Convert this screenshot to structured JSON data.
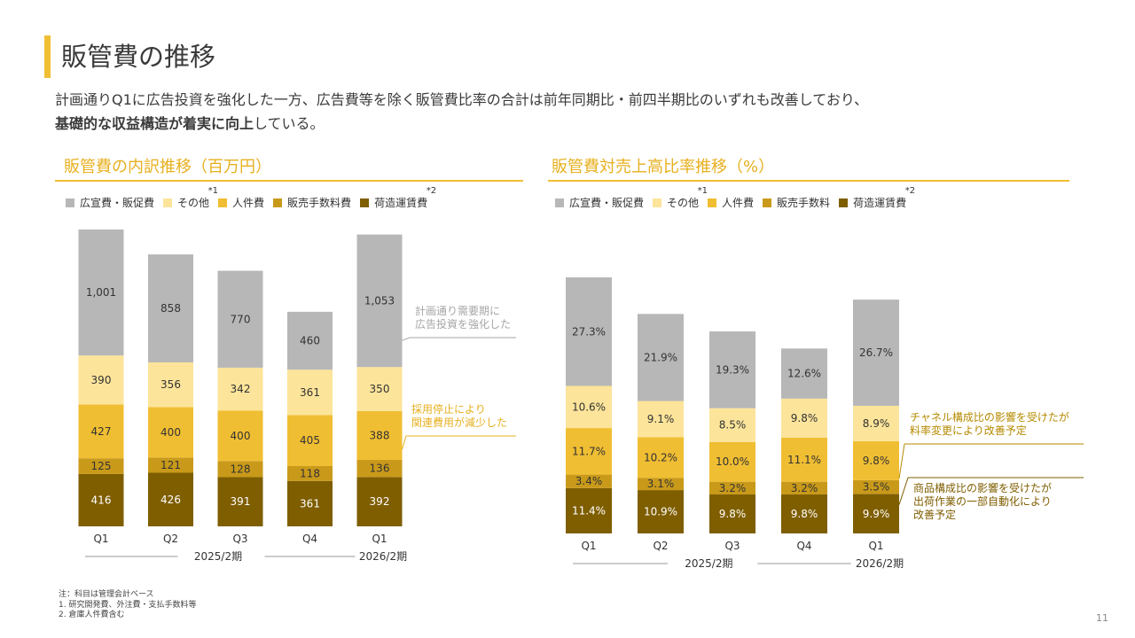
{
  "title": "販管費の推移",
  "lead": {
    "line1": "計画通りQ1に広告投資を強化した一方、広告費等を除く販管費比率の合計は前年同期比・前四半期比のいずれも改善しており、",
    "line2_bold": "基礎的な収益構造が着実に向上",
    "line2_rest": "している。"
  },
  "colors": {
    "ad": "#B7B7B7",
    "other": "#FCE49A",
    "personnel": "#F0BE32",
    "fee": "#C99A1A",
    "shipping": "#7F5E00",
    "accent": "#F0BE32"
  },
  "left_section_title": "販管費の内訳推移（百万円）",
  "right_section_title": "販管費対売上高比率推移（%）",
  "footnotes": [
    "注：科目は管理会計ベース",
    "1.  研究開発費、外注費・支払手数料等",
    "2.  倉庫人件費含む"
  ],
  "page_number": "11",
  "chart_data": [
    {
      "type": "bar",
      "stacked": true,
      "title": "販管費の内訳推移（百万円）",
      "categories": [
        "Q1",
        "Q2",
        "Q3",
        "Q4",
        "Q1"
      ],
      "period_labels": [
        "2025/2期",
        "2026/2期"
      ],
      "legend": [
        {
          "name": "広宣費・販促費",
          "key": "ad",
          "sup": ""
        },
        {
          "name": "その他",
          "key": "other",
          "sup": "1"
        },
        {
          "name": "人件費",
          "key": "personnel",
          "sup": ""
        },
        {
          "name": "販売手数料費",
          "key": "fee",
          "sup": ""
        },
        {
          "name": "荷造運賃費",
          "key": "shipping",
          "sup": "2"
        }
      ],
      "series": [
        {
          "name": "荷造運賃費",
          "key": "shipping",
          "values": [
            416,
            426,
            391,
            361,
            392
          ],
          "labels": [
            "416",
            "426",
            "391",
            "361",
            "392"
          ]
        },
        {
          "name": "販売手数料費",
          "key": "fee",
          "values": [
            125,
            121,
            128,
            118,
            136
          ],
          "labels": [
            "125",
            "121",
            "128",
            "118",
            "136"
          ]
        },
        {
          "name": "人件費",
          "key": "personnel",
          "values": [
            427,
            400,
            400,
            405,
            388
          ],
          "labels": [
            "427",
            "400",
            "400",
            "405",
            "388"
          ]
        },
        {
          "name": "その他",
          "key": "other",
          "values": [
            390,
            356,
            342,
            361,
            350
          ],
          "labels": [
            "390",
            "356",
            "342",
            "361",
            "350"
          ]
        },
        {
          "name": "広宣費・販促費",
          "key": "ad",
          "values": [
            1001,
            858,
            770,
            460,
            1053
          ],
          "labels": [
            "1,001",
            "858",
            "770",
            "460",
            "1,053"
          ]
        }
      ],
      "annotations": [
        {
          "text": [
            "計画通り需要期に",
            "広告投資を強化した"
          ],
          "series": "ad",
          "color": "#A6A6A6"
        },
        {
          "text": [
            "採用停止により",
            "関連費用が減少した"
          ],
          "series": "personnel",
          "color": "#E7B020"
        }
      ]
    },
    {
      "type": "bar",
      "stacked": true,
      "title": "販管費対売上高比率推移（%）",
      "categories": [
        "Q1",
        "Q2",
        "Q3",
        "Q4",
        "Q1"
      ],
      "period_labels": [
        "2025/2期",
        "2026/2期"
      ],
      "legend": [
        {
          "name": "広宣費・販促費",
          "key": "ad",
          "sup": ""
        },
        {
          "name": "その他",
          "key": "other",
          "sup": "1"
        },
        {
          "name": "人件費",
          "key": "personnel",
          "sup": ""
        },
        {
          "name": "販売手数料",
          "key": "fee",
          "sup": ""
        },
        {
          "name": "荷造運賃費",
          "key": "shipping",
          "sup": "2"
        }
      ],
      "series": [
        {
          "name": "荷造運賃費",
          "key": "shipping",
          "values": [
            11.4,
            10.9,
            9.8,
            9.8,
            9.9
          ],
          "labels": [
            "11.4%",
            "10.9%",
            "9.8%",
            "9.8%",
            "9.9%"
          ]
        },
        {
          "name": "販売手数料",
          "key": "fee",
          "values": [
            3.4,
            3.1,
            3.2,
            3.2,
            3.5
          ],
          "labels": [
            "3.4%",
            "3.1%",
            "3.2%",
            "3.2%",
            "3.5%"
          ]
        },
        {
          "name": "人件費",
          "key": "personnel",
          "values": [
            11.7,
            10.2,
            10.0,
            11.1,
            9.8
          ],
          "labels": [
            "11.7%",
            "10.2%",
            "10.0%",
            "11.1%",
            "9.8%"
          ]
        },
        {
          "name": "その他",
          "key": "other",
          "values": [
            10.6,
            9.1,
            8.5,
            9.8,
            8.9
          ],
          "labels": [
            "10.6%",
            "9.1%",
            "8.5%",
            "9.8%",
            "8.9%"
          ]
        },
        {
          "name": "広宣費・販促費",
          "key": "ad",
          "values": [
            27.3,
            21.9,
            19.3,
            12.6,
            26.7
          ],
          "labels": [
            "27.3%",
            "21.9%",
            "19.3%",
            "12.6%",
            "26.7%"
          ]
        }
      ],
      "annotations": [
        {
          "text": [
            "チャネル構成比の影響を受けたが",
            "料率変更により改善予定"
          ],
          "series": "fee",
          "color": "#B58A00"
        },
        {
          "text": [
            "商品構成比の影響を受けたが",
            "出荷作業の一部自動化により",
            "改善予定"
          ],
          "series": "shipping",
          "color": "#7F5E00"
        }
      ]
    }
  ]
}
